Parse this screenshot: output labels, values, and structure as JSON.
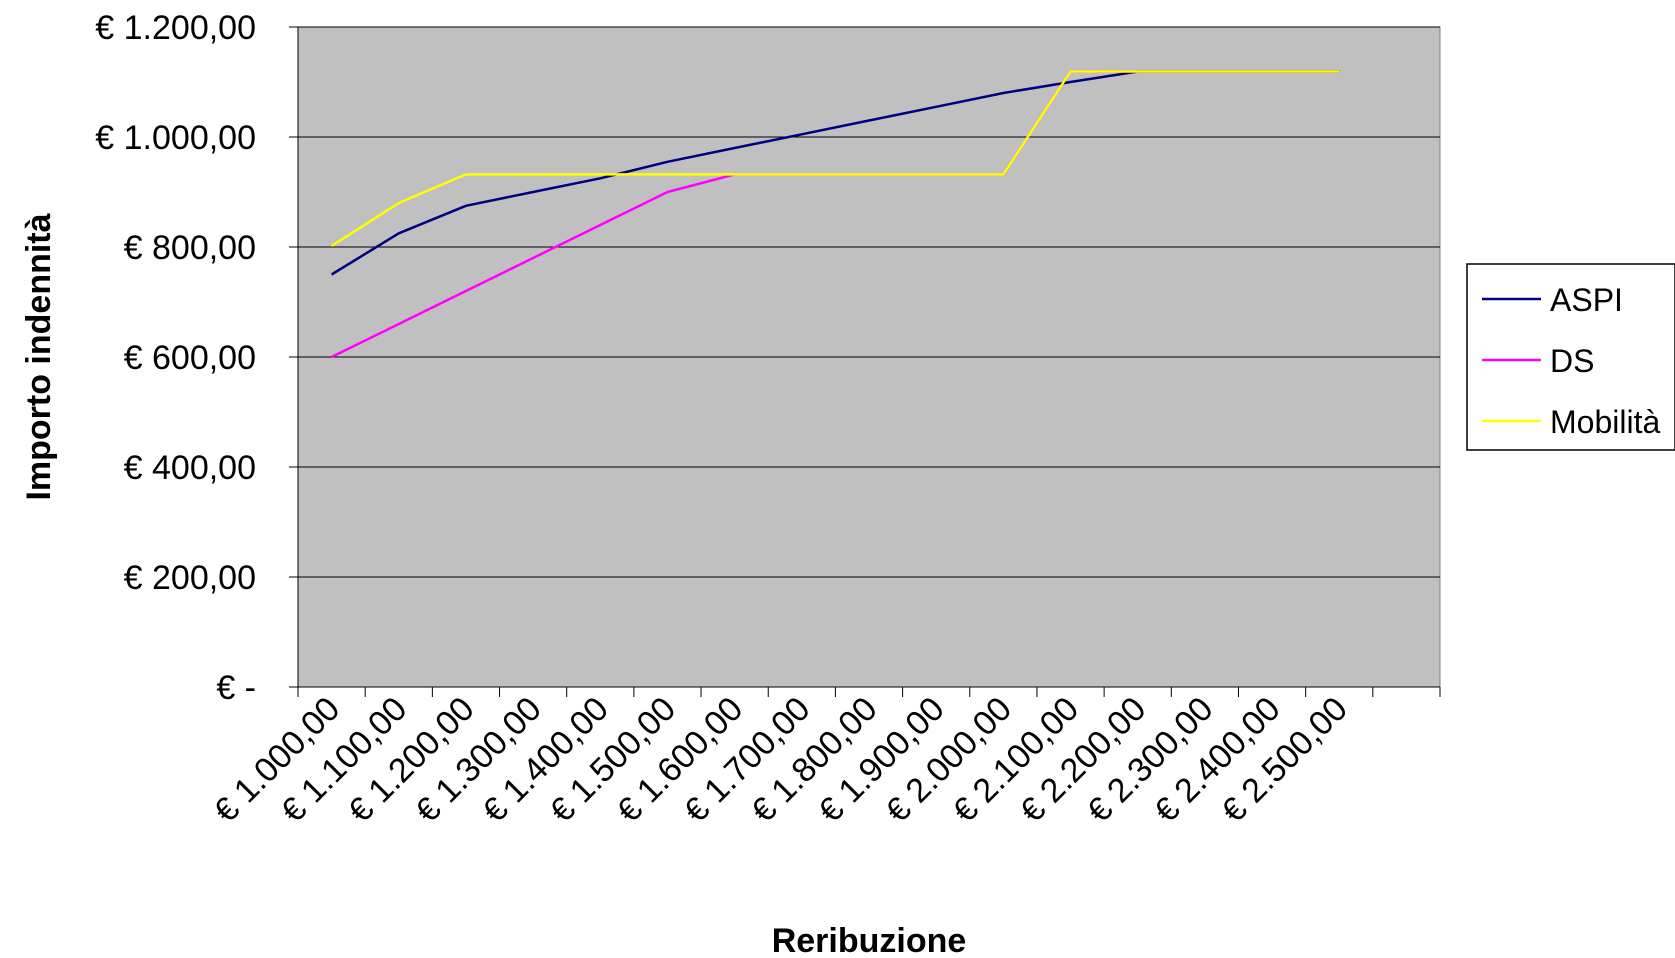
{
  "chart_data": {
    "type": "line",
    "title": "",
    "xlabel": "Reribuzione",
    "ylabel": "Importo indennità",
    "categories": [
      "€ 1.000,00",
      "€ 1.100,00",
      "€ 1.200,00",
      "€ 1.300,00",
      "€ 1.400,00",
      "€ 1.500,00",
      "€ 1.600,00",
      "€ 1.700,00",
      "€ 1.800,00",
      "€ 1.900,00",
      "€ 2.000,00",
      "€ 2.100,00",
      "€ 2.200,00",
      "€ 2.300,00",
      "€ 2.400,00",
      "€ 2.500,00"
    ],
    "yticks": [
      {
        "value": 0,
        "label": "€ -"
      },
      {
        "value": 200,
        "label": "€ 200,00"
      },
      {
        "value": 400,
        "label": "€ 400,00"
      },
      {
        "value": 600,
        "label": "€ 600,00"
      },
      {
        "value": 800,
        "label": "€ 800,00"
      },
      {
        "value": 1000,
        "label": "€ 1.000,00"
      },
      {
        "value": 1200,
        "label": "€ 1.200,00"
      }
    ],
    "ylim": [
      0,
      1200
    ],
    "grid": true,
    "legend_position": "right",
    "plot_background": "#c0c0c0",
    "series": [
      {
        "name": "ASPI",
        "color": "#000080",
        "values": [
          750,
          825,
          875,
          900,
          925,
          955,
          980,
          1005,
          1030,
          1055,
          1080,
          1100,
          1119,
          1119,
          1119,
          1119
        ]
      },
      {
        "name": "DS",
        "color": "#ff00ff",
        "values": [
          600,
          660,
          720,
          780,
          840,
          900,
          932,
          932,
          932,
          932,
          932,
          1119,
          1119,
          1119,
          1119,
          1119
        ]
      },
      {
        "name": "Mobilità",
        "color": "#ffff00",
        "values": [
          802,
          880,
          932,
          932,
          932,
          932,
          932,
          932,
          932,
          932,
          932,
          1119,
          1119,
          1119,
          1119,
          1119
        ]
      }
    ]
  }
}
